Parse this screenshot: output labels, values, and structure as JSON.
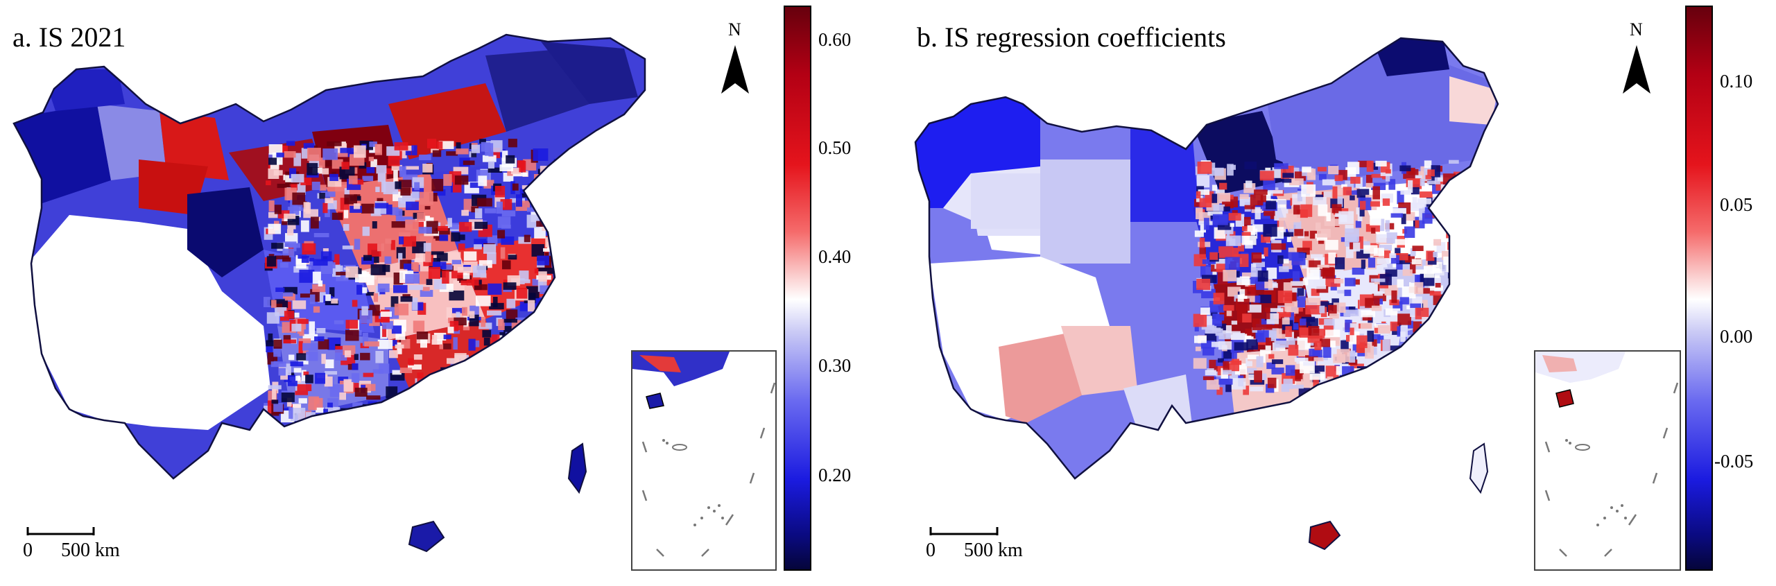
{
  "panels": [
    {
      "title": "a. IS 2021",
      "north_label": "N",
      "colorbar_ticks": [
        "0.60",
        "0.50",
        "0.40",
        "0.30",
        "0.20"
      ],
      "scalebar": {
        "zero": "0",
        "distance": "500 km"
      }
    },
    {
      "title": "b. IS regression coefficients",
      "north_label": "N",
      "colorbar_ticks": [
        "0.10",
        "0.05",
        "0.00",
        "-0.05"
      ],
      "scalebar": {
        "zero": "0",
        "distance": "500 km"
      }
    }
  ],
  "colors": {
    "high": "#67000d",
    "mid_high": "#e5141c",
    "neutral": "#ffffff",
    "mid_low": "#1b1be0",
    "low": "#05053a"
  }
}
